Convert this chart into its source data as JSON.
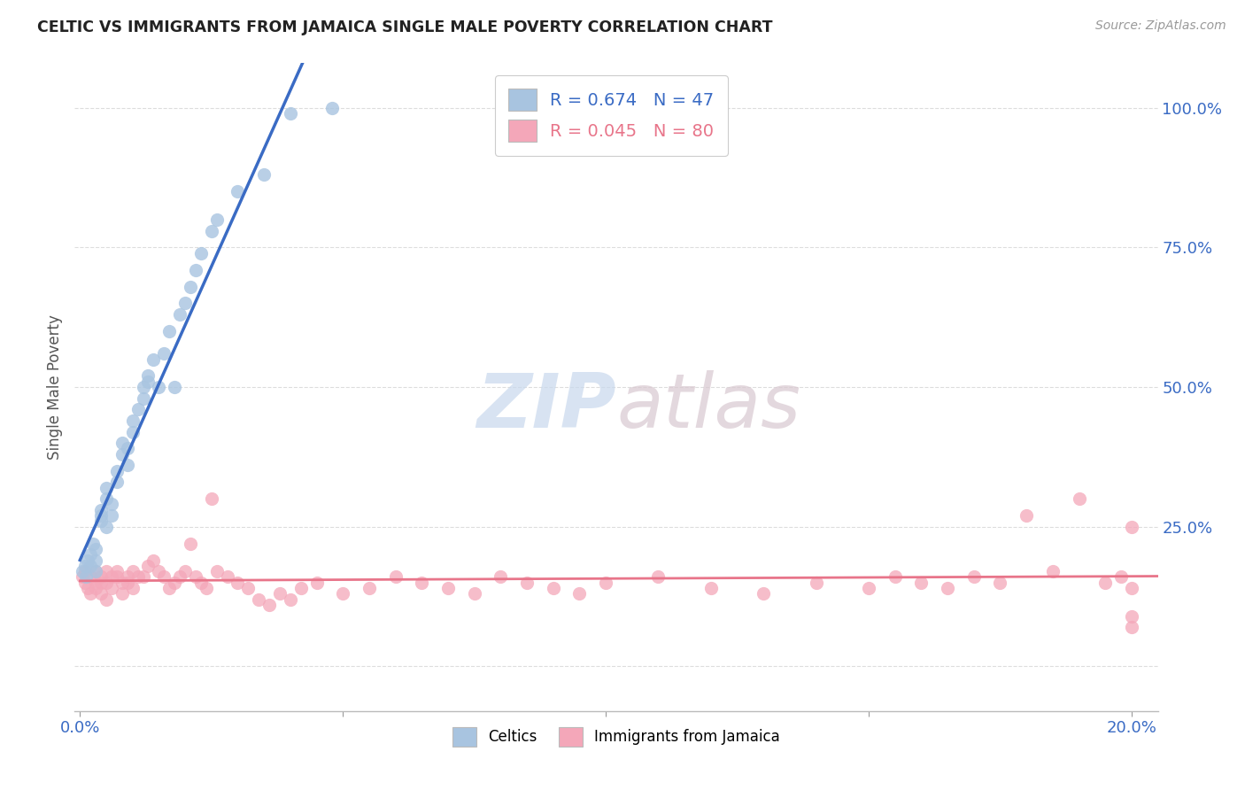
{
  "title": "CELTIC VS IMMIGRANTS FROM JAMAICA SINGLE MALE POVERTY CORRELATION CHART",
  "source": "Source: ZipAtlas.com",
  "ylabel": "Single Male Poverty",
  "ytick_labels": [
    "",
    "25.0%",
    "50.0%",
    "75.0%",
    "100.0%"
  ],
  "ytick_values": [
    0.0,
    0.25,
    0.5,
    0.75,
    1.0
  ],
  "xtick_labels": [
    "0.0%",
    "",
    "",
    "",
    "20.0%"
  ],
  "xtick_values": [
    0.0,
    0.05,
    0.1,
    0.15,
    0.2
  ],
  "xlim": [
    -0.001,
    0.205
  ],
  "ylim": [
    -0.08,
    1.08
  ],
  "legend1_label": "Celtics",
  "legend2_label": "Immigrants from Jamaica",
  "R_blue": 0.674,
  "N_blue": 47,
  "R_pink": 0.045,
  "N_pink": 80,
  "blue_color": "#A8C4E0",
  "pink_color": "#F4A7B9",
  "blue_line_color": "#3A6BC4",
  "pink_line_color": "#E8758A",
  "background_color": "#FFFFFF",
  "blue_x": [
    0.0005,
    0.001,
    0.0012,
    0.0015,
    0.002,
    0.002,
    0.0025,
    0.003,
    0.003,
    0.003,
    0.004,
    0.004,
    0.004,
    0.005,
    0.005,
    0.005,
    0.006,
    0.006,
    0.007,
    0.007,
    0.008,
    0.008,
    0.009,
    0.009,
    0.01,
    0.01,
    0.011,
    0.012,
    0.012,
    0.013,
    0.013,
    0.014,
    0.015,
    0.016,
    0.017,
    0.018,
    0.019,
    0.02,
    0.021,
    0.022,
    0.023,
    0.025,
    0.026,
    0.03,
    0.035,
    0.04,
    0.048
  ],
  "blue_y": [
    0.17,
    0.18,
    0.16,
    0.19,
    0.18,
    0.2,
    0.22,
    0.17,
    0.19,
    0.21,
    0.27,
    0.26,
    0.28,
    0.25,
    0.3,
    0.32,
    0.27,
    0.29,
    0.33,
    0.35,
    0.38,
    0.4,
    0.36,
    0.39,
    0.42,
    0.44,
    0.46,
    0.48,
    0.5,
    0.52,
    0.51,
    0.55,
    0.5,
    0.56,
    0.6,
    0.5,
    0.63,
    0.65,
    0.68,
    0.71,
    0.74,
    0.78,
    0.8,
    0.85,
    0.88,
    0.99,
    1.0
  ],
  "pink_x": [
    0.0005,
    0.001,
    0.001,
    0.0015,
    0.002,
    0.002,
    0.003,
    0.003,
    0.003,
    0.004,
    0.004,
    0.004,
    0.005,
    0.005,
    0.005,
    0.006,
    0.006,
    0.007,
    0.007,
    0.008,
    0.008,
    0.009,
    0.009,
    0.01,
    0.01,
    0.011,
    0.012,
    0.013,
    0.014,
    0.015,
    0.016,
    0.017,
    0.018,
    0.019,
    0.02,
    0.021,
    0.022,
    0.023,
    0.024,
    0.025,
    0.026,
    0.028,
    0.03,
    0.032,
    0.034,
    0.036,
    0.038,
    0.04,
    0.042,
    0.045,
    0.05,
    0.055,
    0.06,
    0.065,
    0.07,
    0.075,
    0.08,
    0.085,
    0.09,
    0.095,
    0.1,
    0.11,
    0.12,
    0.13,
    0.14,
    0.15,
    0.155,
    0.16,
    0.165,
    0.17,
    0.175,
    0.18,
    0.185,
    0.19,
    0.195,
    0.198,
    0.2,
    0.2,
    0.2,
    0.2
  ],
  "pink_y": [
    0.16,
    0.15,
    0.17,
    0.14,
    0.16,
    0.13,
    0.17,
    0.15,
    0.14,
    0.16,
    0.15,
    0.13,
    0.17,
    0.15,
    0.12,
    0.16,
    0.14,
    0.16,
    0.17,
    0.15,
    0.13,
    0.16,
    0.15,
    0.14,
    0.17,
    0.16,
    0.16,
    0.18,
    0.19,
    0.17,
    0.16,
    0.14,
    0.15,
    0.16,
    0.17,
    0.22,
    0.16,
    0.15,
    0.14,
    0.3,
    0.17,
    0.16,
    0.15,
    0.14,
    0.12,
    0.11,
    0.13,
    0.12,
    0.14,
    0.15,
    0.13,
    0.14,
    0.16,
    0.15,
    0.14,
    0.13,
    0.16,
    0.15,
    0.14,
    0.13,
    0.15,
    0.16,
    0.14,
    0.13,
    0.15,
    0.14,
    0.16,
    0.15,
    0.14,
    0.16,
    0.15,
    0.27,
    0.17,
    0.3,
    0.15,
    0.16,
    0.07,
    0.09,
    0.14,
    0.25
  ]
}
